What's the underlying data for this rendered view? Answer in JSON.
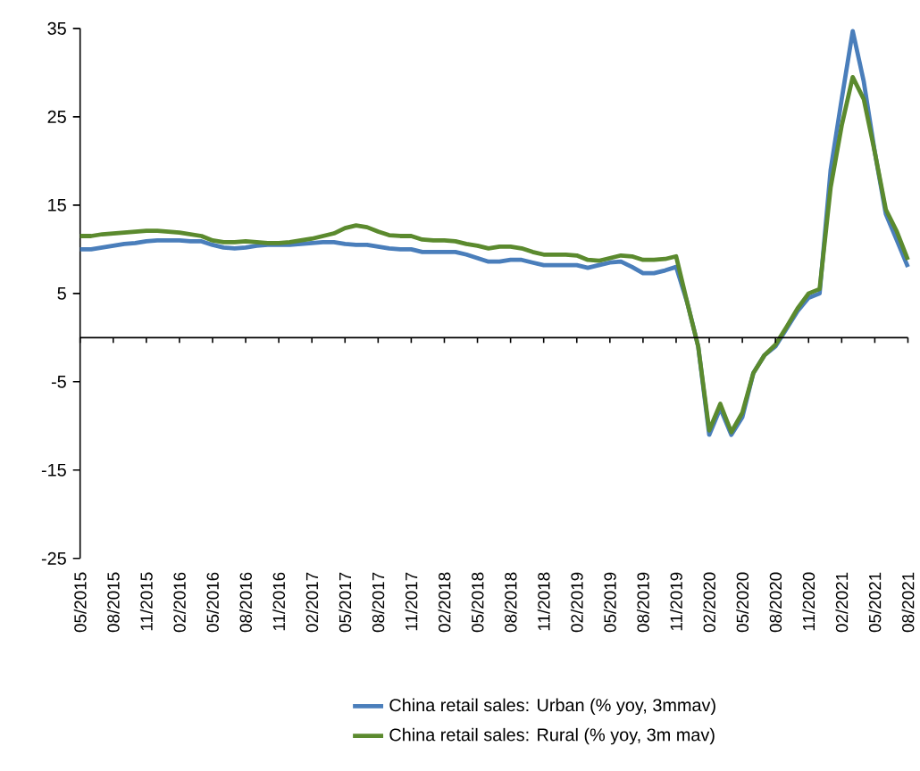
{
  "chart_data": {
    "type": "line",
    "categories": [
      "05/2015",
      null,
      null,
      "08/2015",
      null,
      null,
      "11/2015",
      null,
      null,
      "02/2016",
      null,
      null,
      "05/2016",
      null,
      null,
      "08/2016",
      null,
      null,
      "11/2016",
      null,
      null,
      "02/2017",
      null,
      null,
      "05/2017",
      null,
      null,
      "08/2017",
      null,
      null,
      "11/2017",
      null,
      null,
      "02/2018",
      null,
      null,
      "05/2018",
      null,
      null,
      "08/2018",
      null,
      null,
      "11/2018",
      null,
      null,
      "02/2019",
      null,
      null,
      "05/2019",
      null,
      null,
      "08/2019",
      null,
      null,
      "11/2019",
      null,
      null,
      "02/2020",
      null,
      null,
      "05/2020",
      null,
      null,
      "08/2020",
      null,
      null,
      "11/2020",
      null,
      null,
      "02/2021",
      null,
      null,
      "05/2021",
      null,
      null,
      "08/2021"
    ],
    "series": [
      {
        "name": "China retail sales: Urban (% yoy, 3mmav)",
        "color": "#4a7ebb",
        "values": [
          10.0,
          10.0,
          10.2,
          10.4,
          10.6,
          10.7,
          10.9,
          11.0,
          11.0,
          11.0,
          10.9,
          10.9,
          10.5,
          10.2,
          10.1,
          10.2,
          10.4,
          10.5,
          10.5,
          10.5,
          10.6,
          10.7,
          10.8,
          10.8,
          10.6,
          10.5,
          10.5,
          10.3,
          10.1,
          10.0,
          10.0,
          9.7,
          9.7,
          9.7,
          9.7,
          9.4,
          9.0,
          8.6,
          8.6,
          8.8,
          8.8,
          8.5,
          8.2,
          8.2,
          8.2,
          8.2,
          7.9,
          8.2,
          8.5,
          8.6,
          8.0,
          7.3,
          7.3,
          7.6,
          8.0,
          4,
          -1,
          -11,
          -8,
          -11,
          -9,
          -4,
          -2,
          -1,
          1,
          3,
          4.5,
          5,
          19,
          27,
          34.7,
          29,
          21,
          14,
          11,
          8
        ]
      },
      {
        "name": "China retail sales: Rural (% yoy, 3m mav)",
        "color": "#5b8a2e",
        "values": [
          11.5,
          11.5,
          11.7,
          11.8,
          11.9,
          12.0,
          12.1,
          12.1,
          12.0,
          11.9,
          11.7,
          11.5,
          11.0,
          10.8,
          10.8,
          10.9,
          10.8,
          10.7,
          10.7,
          10.8,
          11.0,
          11.2,
          11.5,
          11.8,
          12.4,
          12.7,
          12.5,
          12.0,
          11.6,
          11.5,
          11.5,
          11.1,
          11.0,
          11.0,
          10.9,
          10.6,
          10.4,
          10.1,
          10.3,
          10.3,
          10.1,
          9.7,
          9.4,
          9.4,
          9.4,
          9.3,
          8.8,
          8.7,
          9.0,
          9.3,
          9.2,
          8.8,
          8.8,
          8.9,
          9.2,
          4,
          -1,
          -10.5,
          -7.5,
          -10.7,
          -8.5,
          -4,
          -2,
          -0.8,
          1.2,
          3.3,
          5,
          5.5,
          17,
          24,
          29.5,
          27,
          21,
          14.5,
          12,
          8.8
        ]
      }
    ],
    "ylim": [
      -25,
      35
    ],
    "yticks": [
      -25,
      -15,
      -5,
      5,
      15,
      25,
      35
    ],
    "legend": "bottom",
    "grid": false,
    "marker": "none",
    "line_style": "solid"
  }
}
